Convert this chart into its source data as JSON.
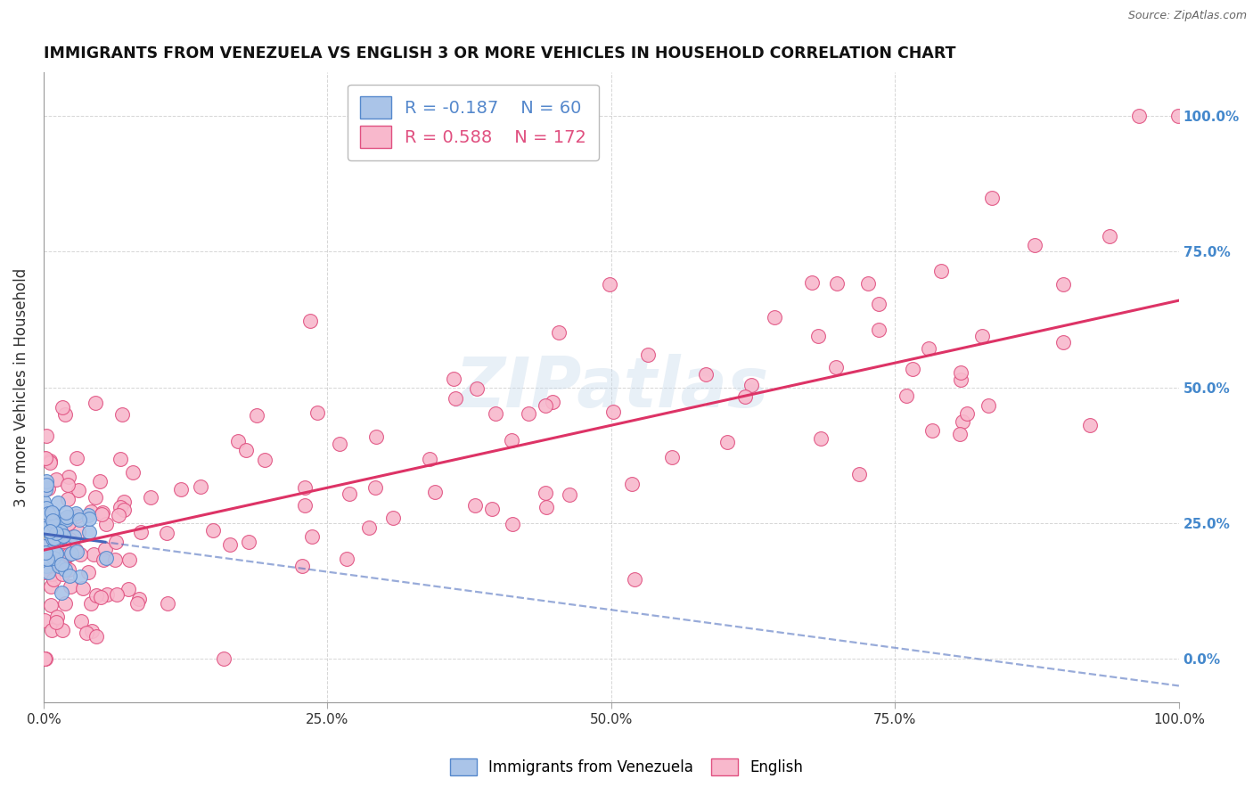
{
  "title": "IMMIGRANTS FROM VENEZUELA VS ENGLISH 3 OR MORE VEHICLES IN HOUSEHOLD CORRELATION CHART",
  "source": "Source: ZipAtlas.com",
  "ylabel": "3 or more Vehicles in Household",
  "legend_blue_r": "-0.187",
  "legend_blue_n": "60",
  "legend_pink_r": "0.588",
  "legend_pink_n": "172",
  "legend_label_blue": "Immigrants from Venezuela",
  "legend_label_pink": "English",
  "watermark": "ZIPatlas",
  "blue_scatter_face": "#aac4e8",
  "blue_scatter_edge": "#5588cc",
  "pink_scatter_face": "#f8b8cc",
  "pink_scatter_edge": "#e05080",
  "blue_line_color": "#4466bb",
  "pink_line_color": "#dd3366",
  "background_color": "#ffffff",
  "grid_color": "#cccccc",
  "right_tick_color": "#4488cc",
  "xlim": [
    0,
    100
  ],
  "ylim": [
    -8,
    108
  ],
  "blue_solid_end": 5.5,
  "blue_intercept": 23.0,
  "blue_slope": -0.28,
  "pink_intercept": 20.0,
  "pink_slope": 0.46
}
